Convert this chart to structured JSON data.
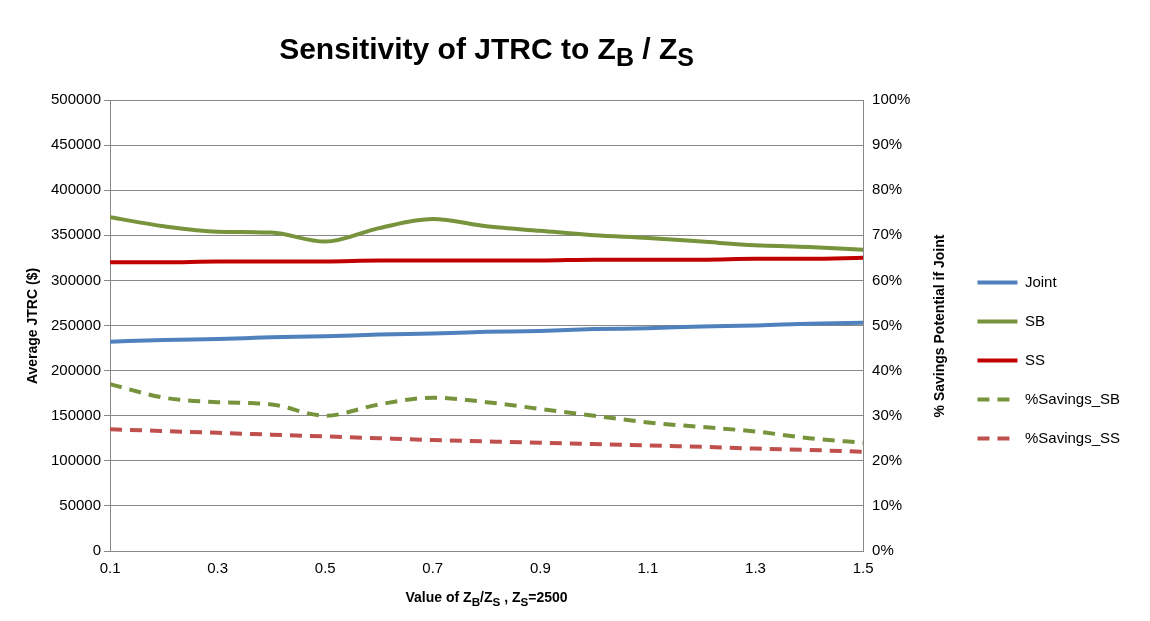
{
  "chart_data": {
    "type": "line",
    "title": "Sensitivity of JTRC to Z$_{B}$ / Z$_{S}$",
    "xlabel": "Value of Z$_{B}$/Z$_{S}$ , Z$_{S}$=2500",
    "ylabel": "Average JTRC ($)",
    "y2label": "% Savings  Potential if Joint",
    "x": [
      0.1,
      0.2,
      0.3,
      0.4,
      0.5,
      0.6,
      0.7,
      0.8,
      0.9,
      1.0,
      1.1,
      1.2,
      1.3,
      1.4,
      1.5
    ],
    "series": [
      {
        "name": "Joint",
        "color": "#4f81bd",
        "values": [
          232000,
          234000,
          235000,
          237000,
          238000,
          240000,
          241000,
          243000,
          244000,
          246000,
          247000,
          249000,
          250000,
          252000,
          253000
        ]
      },
      {
        "name": "SB",
        "color": "#77933c",
        "values": [
          370000,
          360000,
          354000,
          353000,
          343000,
          358000,
          368000,
          360000,
          355000,
          350000,
          347000,
          343000,
          339000,
          337000,
          334000
        ]
      },
      {
        "name": "SS",
        "color": "#c00000",
        "values": [
          320000,
          320000,
          321000,
          321000,
          321000,
          322000,
          322000,
          322000,
          322000,
          323000,
          323000,
          323000,
          324000,
          324000,
          325000
        ]
      },
      {
        "name": "%Savings_SB",
        "color": "#77933c",
        "axis": "y2",
        "line_style": "dashed",
        "values": [
          37,
          34,
          33,
          32.5,
          30,
          32.5,
          34,
          33,
          31.5,
          30,
          28.5,
          27.5,
          26.5,
          25,
          24
        ]
      },
      {
        "name": "%Savings_SS",
        "color": "#c0504d",
        "axis": "y2",
        "line_style": "dashed",
        "values": [
          27,
          26.6,
          26.2,
          25.8,
          25.4,
          25,
          24.6,
          24.3,
          24,
          23.7,
          23.4,
          23.1,
          22.7,
          22.4,
          22
        ]
      }
    ],
    "xlim": [
      0.1,
      1.5
    ],
    "xticks": [
      0.1,
      0.3,
      0.5,
      0.7,
      0.9,
      1.1,
      1.3,
      1.5
    ],
    "ylim": [
      0,
      500000
    ],
    "yticks": [
      0,
      50000,
      100000,
      150000,
      200000,
      250000,
      300000,
      350000,
      400000,
      450000,
      500000
    ],
    "y2lim": [
      0,
      100
    ],
    "y2ticks": [
      {
        "value": 0,
        "label": "0%"
      },
      {
        "value": 10,
        "label": "10%"
      },
      {
        "value": 20,
        "label": "20%"
      },
      {
        "value": 30,
        "label": "30%"
      },
      {
        "value": 40,
        "label": "40%"
      },
      {
        "value": 50,
        "label": "50%"
      },
      {
        "value": 60,
        "label": "60%"
      },
      {
        "value": 70,
        "label": "70%"
      },
      {
        "value": 80,
        "label": "80%"
      },
      {
        "value": 90,
        "label": "90%"
      },
      {
        "value": 100,
        "label": "100%"
      }
    ],
    "grid": "y",
    "legend": "right",
    "marker": "none",
    "line_style": "solid"
  }
}
